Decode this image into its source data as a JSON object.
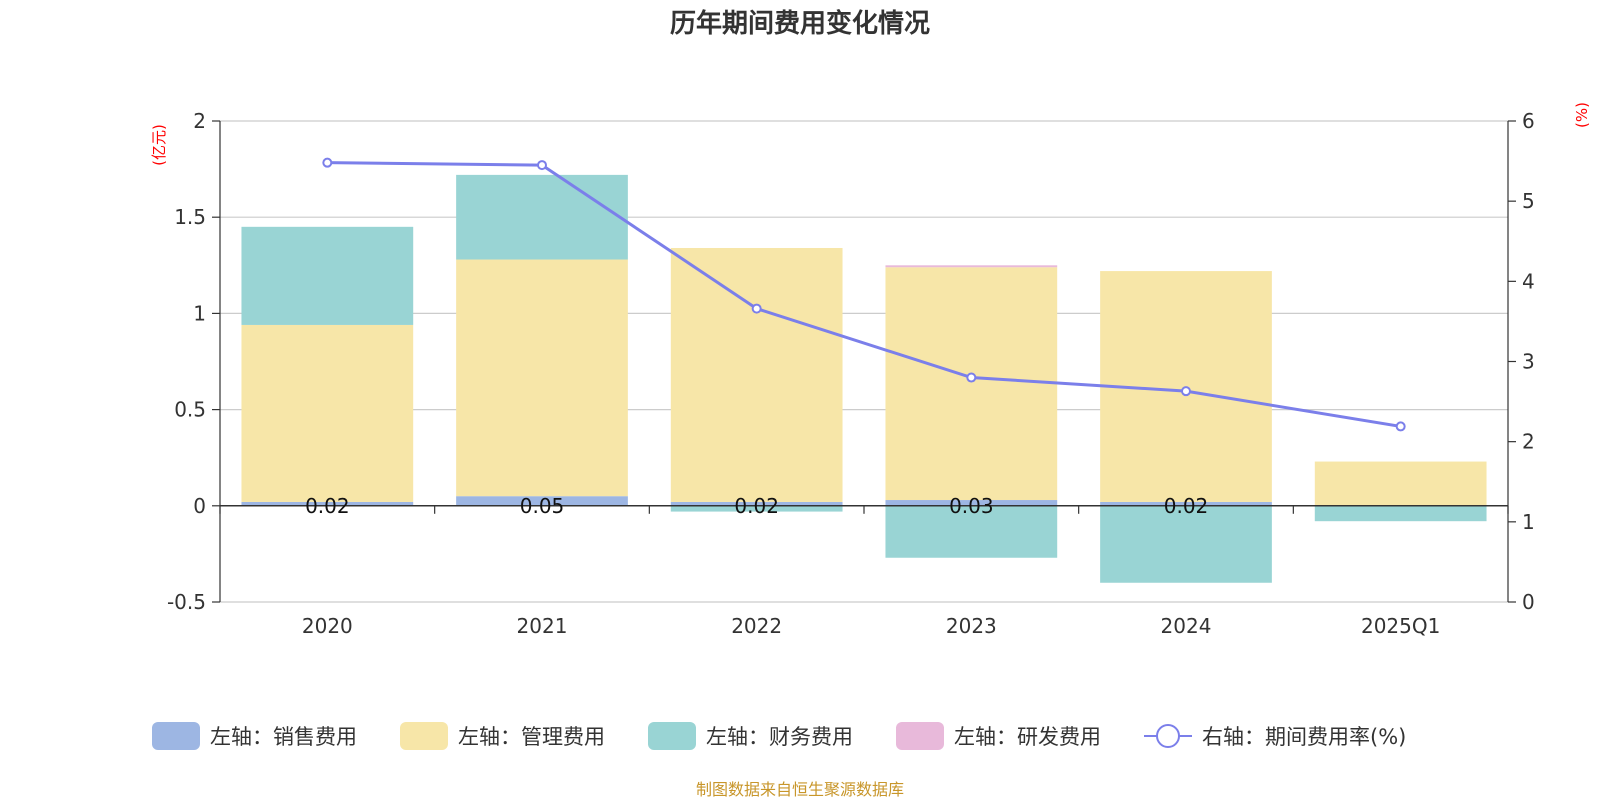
{
  "chart_data": {
    "type": "bar",
    "title": "历年期间费用变化情况",
    "categories": [
      "2020",
      "2021",
      "2022",
      "2023",
      "2024",
      "2025Q1"
    ],
    "y_left": {
      "unit": "(亿元)",
      "ylim": [
        -0.5,
        2
      ],
      "ticks": [
        "2",
        "1.5",
        "1",
        "0.5",
        "0",
        "-0.5"
      ]
    },
    "y_right": {
      "unit": "(%)",
      "ylim": [
        0,
        6
      ],
      "ticks": [
        "6",
        "5",
        "4",
        "3",
        "2",
        "1",
        "0"
      ]
    },
    "stacked": true,
    "series": [
      {
        "name": "左轴：销售费用",
        "axis": "left",
        "kind": "bar",
        "color": "#9db6e3",
        "values": [
          0.02,
          0.05,
          0.02,
          0.03,
          0.02,
          0.0
        ]
      },
      {
        "name": "左轴：管理费用",
        "axis": "left",
        "kind": "bar",
        "color": "#f7e6a8",
        "values": [
          0.92,
          1.23,
          1.32,
          1.21,
          1.2,
          0.23
        ]
      },
      {
        "name": "左轴：财务费用",
        "axis": "left",
        "kind": "bar",
        "color": "#99d4d4",
        "values": [
          0.51,
          0.44,
          -0.03,
          -0.27,
          -0.4,
          -0.08
        ]
      },
      {
        "name": "左轴：研发费用",
        "axis": "left",
        "kind": "bar",
        "color": "#e8b9da",
        "values": [
          0.0,
          0.0,
          0.0,
          0.01,
          0.0,
          0.0
        ]
      },
      {
        "name": "右轴：期间费用率(%)",
        "axis": "right",
        "kind": "line",
        "color": "#7b7fea",
        "values": [
          5.48,
          5.45,
          3.66,
          2.8,
          2.63,
          2.19
        ]
      }
    ],
    "data_labels": [
      "0.02",
      "0.05",
      "0.02",
      "0.03",
      "0.02",
      ""
    ],
    "grid": true,
    "legend_position": "bottom"
  },
  "footer": {
    "source": "制图数据来自恒生聚源数据库"
  }
}
